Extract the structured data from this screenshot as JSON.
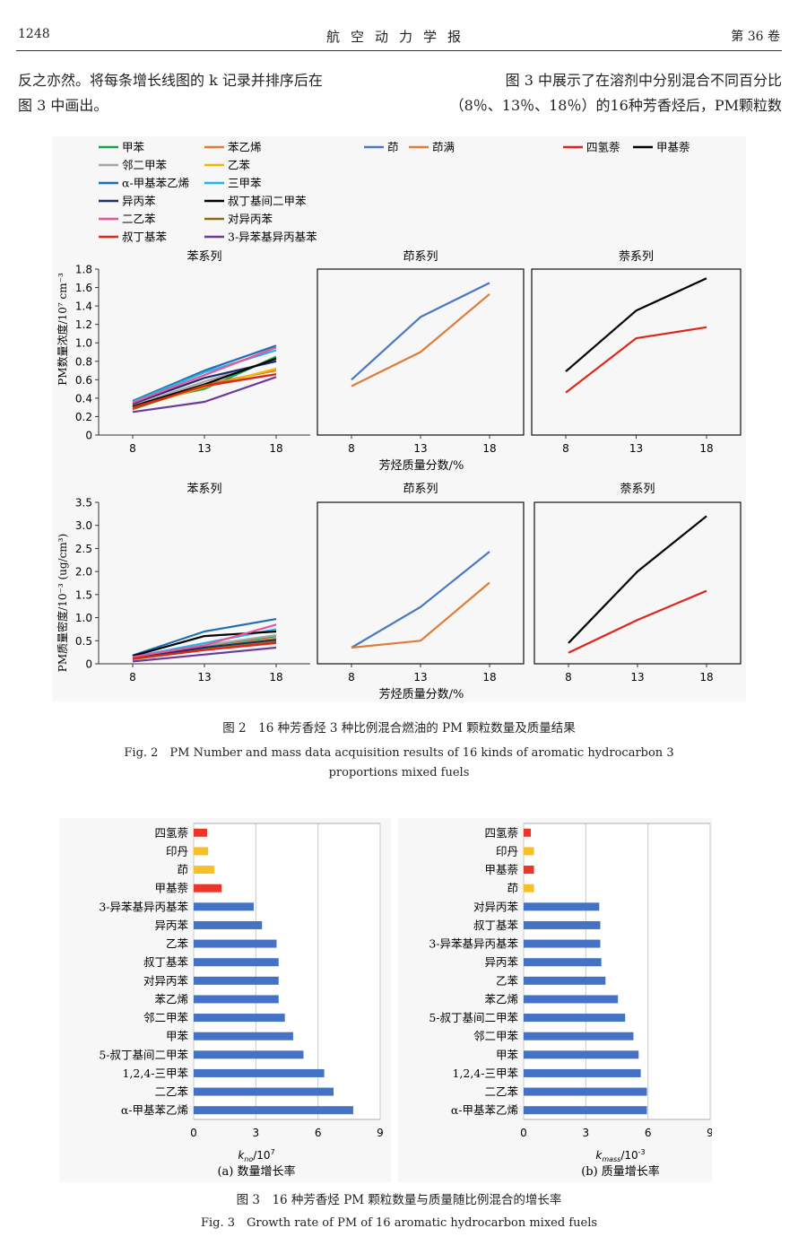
{
  "header": {
    "page_number": "1248",
    "journal": "航空动力学报",
    "volume": "第 36 卷"
  },
  "body_text": {
    "left": [
      "反之亦然。将每条增长线图的 k 记录并排序后在",
      "图 3 中画出。"
    ],
    "right": [
      "图 3 中展示了在溶剂中分别混合不同百分比",
      "（8％、13％、18％）的16种芳香烃后，PM颗粒数"
    ]
  },
  "figure2": {
    "caption_cn": "图 2　16 种芳香烃 3 种比例混合燃油的 PM 颗粒数量及质量结果",
    "caption_en_1": "Fig. 2　PM Number and mass data acquisition results of 16 kinds of aromatic hydrocarbon 3",
    "caption_en_2": "proportions mixed fuels",
    "legend": [
      {
        "name": "甲苯",
        "color": "#1aa24b"
      },
      {
        "name": "苯乙烯",
        "color": "#e07b39"
      },
      {
        "name": "邻二甲苯",
        "color": "#a6a6a6"
      },
      {
        "name": "乙苯",
        "color": "#f2b705"
      },
      {
        "name": "α-甲基苯乙烯",
        "color": "#1f6fb2"
      },
      {
        "name": "三甲苯",
        "color": "#22b5e6"
      },
      {
        "name": "异丙苯",
        "color": "#1b2e6e"
      },
      {
        "name": "叔丁基间二甲苯",
        "color": "#000000"
      },
      {
        "name": "二乙苯",
        "color": "#e8559b"
      },
      {
        "name": "对异丙苯",
        "color": "#8a6a12"
      },
      {
        "name": "叔丁基苯",
        "color": "#e0261a"
      },
      {
        "name": "3-异苯基异丙基苯",
        "color": "#6b3a9c"
      },
      {
        "name": "茚",
        "color": "#4a78c2"
      },
      {
        "name": "茚满",
        "color": "#e07b39"
      },
      {
        "name": "四氢萘",
        "color": "#e0261a"
      },
      {
        "name": "甲基萘",
        "color": "#000000"
      }
    ],
    "xlabel": "芳烃质量分数/%",
    "ylabel_top": "PM数量浓度/10⁷ cm⁻³",
    "ylabel_bottom": "PM质量密度/10⁻³ (ug/cm³)",
    "panel_titles": [
      "苯系列",
      "茚系列",
      "萘系列"
    ]
  },
  "chart_data": [
    {
      "type": "line",
      "title": "苯系列",
      "x": [
        8,
        13,
        18
      ],
      "ylim": [
        0,
        1.8
      ],
      "yticks": [
        "0",
        "0.2",
        "0.4",
        "0.6",
        "0.8",
        "1.0",
        "1.2",
        "1.4",
        "1.6",
        "1.8"
      ],
      "series": [
        {
          "name": "甲苯",
          "values": [
            0.33,
            0.5,
            0.85
          ]
        },
        {
          "name": "苯乙烯",
          "values": [
            0.3,
            0.55,
            0.7
          ]
        },
        {
          "name": "邻二甲苯",
          "values": [
            0.32,
            0.58,
            0.82
          ]
        },
        {
          "name": "乙苯",
          "values": [
            0.29,
            0.52,
            0.72
          ]
        },
        {
          "name": "α-甲基苯乙烯",
          "values": [
            0.37,
            0.7,
            0.97
          ]
        },
        {
          "name": "三甲苯",
          "values": [
            0.36,
            0.68,
            0.92
          ]
        },
        {
          "name": "异丙苯",
          "values": [
            0.34,
            0.62,
            0.8
          ]
        },
        {
          "name": "叔丁基间二甲苯",
          "values": [
            0.31,
            0.55,
            0.83
          ]
        },
        {
          "name": "二乙苯",
          "values": [
            0.35,
            0.65,
            0.95
          ]
        },
        {
          "name": "对异丙苯",
          "values": [
            0.28,
            0.54,
            0.66
          ]
        },
        {
          "name": "叔丁基苯",
          "values": [
            0.3,
            0.53,
            0.66
          ]
        },
        {
          "name": "3-异苯基异丙基苯",
          "values": [
            0.25,
            0.36,
            0.63
          ]
        }
      ]
    },
    {
      "type": "line",
      "title": "茚系列",
      "x": [
        8,
        13,
        18
      ],
      "ylim": [
        0,
        1.8
      ],
      "series": [
        {
          "name": "茚",
          "values": [
            0.6,
            1.28,
            1.65
          ]
        },
        {
          "name": "茚满",
          "values": [
            0.53,
            0.9,
            1.53
          ]
        }
      ]
    },
    {
      "type": "line",
      "title": "萘系列",
      "x": [
        8,
        13,
        18
      ],
      "ylim": [
        0,
        1.8
      ],
      "series": [
        {
          "name": "四氢萘",
          "values": [
            0.46,
            1.05,
            1.17
          ]
        },
        {
          "name": "甲基萘",
          "values": [
            0.69,
            1.35,
            1.7
          ]
        }
      ]
    },
    {
      "type": "line",
      "title": "苯系列",
      "x": [
        8,
        13,
        18
      ],
      "ylim": [
        0,
        3.5
      ],
      "yticks": [
        "0",
        "0.5",
        "1.0",
        "1.5",
        "2.0",
        "2.5",
        "3.0",
        "3.5"
      ],
      "series": [
        {
          "name": "甲苯",
          "values": [
            0.13,
            0.38,
            0.6
          ]
        },
        {
          "name": "苯乙烯",
          "values": [
            0.12,
            0.35,
            0.55
          ]
        },
        {
          "name": "邻二甲苯",
          "values": [
            0.14,
            0.4,
            0.62
          ]
        },
        {
          "name": "乙苯",
          "values": [
            0.11,
            0.32,
            0.5
          ]
        },
        {
          "name": "α-甲基苯乙烯",
          "values": [
            0.18,
            0.7,
            0.97
          ]
        },
        {
          "name": "三甲苯",
          "values": [
            0.15,
            0.45,
            0.75
          ]
        },
        {
          "name": "异丙苯",
          "values": [
            0.12,
            0.35,
            0.52
          ]
        },
        {
          "name": "叔丁基间二甲苯",
          "values": [
            0.17,
            0.6,
            0.7
          ]
        },
        {
          "name": "二乙苯",
          "values": [
            0.15,
            0.4,
            0.85
          ]
        },
        {
          "name": "对异丙苯",
          "values": [
            0.1,
            0.3,
            0.48
          ]
        },
        {
          "name": "叔丁基苯",
          "values": [
            0.11,
            0.3,
            0.45
          ]
        },
        {
          "name": "3-异苯基异丙基苯",
          "values": [
            0.05,
            0.2,
            0.35
          ]
        }
      ]
    },
    {
      "type": "line",
      "title": "茚系列",
      "x": [
        8,
        13,
        18
      ],
      "ylim": [
        0,
        3.5
      ],
      "series": [
        {
          "name": "茚",
          "values": [
            0.35,
            1.23,
            2.43
          ]
        },
        {
          "name": "茚满",
          "values": [
            0.35,
            0.5,
            1.76
          ]
        }
      ]
    },
    {
      "type": "line",
      "title": "萘系列",
      "x": [
        8,
        13,
        18
      ],
      "ylim": [
        0,
        3.5
      ],
      "series": [
        {
          "name": "四氢萘",
          "values": [
            0.24,
            0.95,
            1.58
          ]
        },
        {
          "name": "甲基萘",
          "values": [
            0.45,
            2.0,
            3.2
          ]
        }
      ]
    },
    {
      "type": "bar",
      "orientation": "horizontal",
      "subtitle": "(a) 数量增长率",
      "xlabel": "k_no/10^7",
      "xlim": [
        0,
        9
      ],
      "xticks": [
        "0",
        "3",
        "6",
        "9"
      ],
      "categories": [
        "四氢萘",
        "印丹",
        "茚",
        "甲基萘",
        "3-异苯基异丙基苯",
        "异丙苯",
        "乙苯",
        "叔丁基苯",
        "对异丙苯",
        "苯乙烯",
        "邻二甲苯",
        "甲苯",
        "5-叔丁基间二甲苯",
        "1,2,4-三甲苯",
        "二乙苯",
        "α-甲基苯乙烯"
      ],
      "values": [
        0.65,
        0.7,
        1.0,
        1.35,
        2.9,
        3.3,
        4.0,
        4.1,
        4.1,
        4.1,
        4.4,
        4.8,
        5.3,
        6.3,
        6.75,
        7.7
      ],
      "colors": [
        "#e8362b",
        "#f5c02a",
        "#f5c02a",
        "#e8362b",
        "#4472c4",
        "#4472c4",
        "#4472c4",
        "#4472c4",
        "#4472c4",
        "#4472c4",
        "#4472c4",
        "#4472c4",
        "#4472c4",
        "#4472c4",
        "#4472c4",
        "#4472c4"
      ]
    },
    {
      "type": "bar",
      "orientation": "horizontal",
      "subtitle": "(b) 质量增长率",
      "xlabel": "k_mass/10^-3",
      "xlim": [
        0,
        9
      ],
      "xticks": [
        "0",
        "3",
        "6",
        "9"
      ],
      "categories": [
        "四氢萘",
        "印丹",
        "甲基萘",
        "茚",
        "对异丙苯",
        "叔丁基苯",
        "3-异苯基异丙基苯",
        "异丙苯",
        "乙苯",
        "苯乙烯",
        "5-叔丁基间二甲苯",
        "邻二甲苯",
        "甲苯",
        "1,2,4-三甲苯",
        "二乙苯",
        "α-甲基苯乙烯"
      ],
      "values": [
        0.35,
        0.5,
        0.5,
        0.5,
        3.65,
        3.7,
        3.7,
        3.75,
        3.95,
        4.55,
        4.9,
        5.3,
        5.55,
        5.65,
        5.95,
        5.95
      ],
      "colors": [
        "#e8362b",
        "#f5c02a",
        "#e8362b",
        "#f5c02a",
        "#4472c4",
        "#4472c4",
        "#4472c4",
        "#4472c4",
        "#4472c4",
        "#4472c4",
        "#4472c4",
        "#4472c4",
        "#4472c4",
        "#4472c4",
        "#4472c4",
        "#4472c4"
      ]
    }
  ],
  "figure3": {
    "caption_cn": "图 3　16 种芳香烃 PM 颗粒数量与质量随比例混合的增长率",
    "caption_en": "Fig. 3　Growth rate of PM of 16 aromatic hydrocarbon mixed fuels",
    "sub_a": "(a) 数量增长率",
    "sub_b": "(b) 质量增长率",
    "xlabel_a_main": "k",
    "xlabel_a_sub": "no",
    "xlabel_a_unit": "/10",
    "xlabel_a_exp": "7",
    "xlabel_b_main": "k",
    "xlabel_b_sub": "mass",
    "xlabel_b_unit": "/10",
    "xlabel_b_exp": "-3"
  }
}
